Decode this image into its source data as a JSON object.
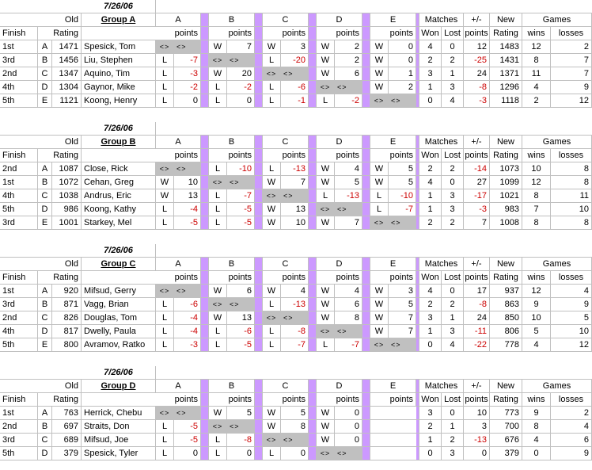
{
  "colors": {
    "diagonal_fill": "#c0c0c0",
    "separator_fill": "#cc99ff",
    "negative_text": "#cc0000",
    "grid_line": "#c0c0c0"
  },
  "headers": {
    "row1": {
      "old": "Old",
      "a": "A",
      "b": "B",
      "c": "C",
      "d": "D",
      "e": "E",
      "matches": "Matches",
      "plusminus": "+/-",
      "new": "New",
      "games": "Games"
    },
    "row2": {
      "finish": "Finish",
      "rating": "Rating",
      "points": "points",
      "won": "Won",
      "lost": "Lost",
      "pm_points": "points",
      "new_rating": "Rating",
      "wins": "wins",
      "losses": "losses"
    }
  },
  "diagonal_marker": "<>",
  "groups": [
    {
      "date": "7/26/06",
      "title": "Group A",
      "players": [
        {
          "finish": "1st",
          "id": "A",
          "old": "1471",
          "name": "Spesick, Tom",
          "res": [
            [
              "<>",
              "<>"
            ],
            [
              "W",
              "7"
            ],
            [
              "W",
              "3"
            ],
            [
              "W",
              "2"
            ],
            [
              "W",
              "0"
            ]
          ],
          "won": "4",
          "lost": "0",
          "pm": "12",
          "new": "1483",
          "wins": "12",
          "losses": "2"
        },
        {
          "finish": "3rd",
          "id": "B",
          "old": "1456",
          "name": "Liu, Stephen",
          "res": [
            [
              "L",
              "-7"
            ],
            [
              "<>",
              "<>"
            ],
            [
              "L",
              "-20"
            ],
            [
              "W",
              "2"
            ],
            [
              "W",
              "0"
            ]
          ],
          "won": "2",
          "lost": "2",
          "pm": "-25",
          "new": "1431",
          "wins": "8",
          "losses": "7"
        },
        {
          "finish": "2nd",
          "id": "C",
          "old": "1347",
          "name": "Aquino, Tim",
          "res": [
            [
              "L",
              "-3"
            ],
            [
              "W",
              "20"
            ],
            [
              "<>",
              "<>"
            ],
            [
              "W",
              "6"
            ],
            [
              "W",
              "1"
            ]
          ],
          "won": "3",
          "lost": "1",
          "pm": "24",
          "new": "1371",
          "wins": "11",
          "losses": "7"
        },
        {
          "finish": "4th",
          "id": "D",
          "old": "1304",
          "name": "Gaynor, Mike",
          "res": [
            [
              "L",
              "-2"
            ],
            [
              "L",
              "-2"
            ],
            [
              "L",
              "-6"
            ],
            [
              "<>",
              "<>"
            ],
            [
              "W",
              "2"
            ]
          ],
          "won": "1",
          "lost": "3",
          "pm": "-8",
          "new": "1296",
          "wins": "4",
          "losses": "9"
        },
        {
          "finish": "5th",
          "id": "E",
          "old": "1121",
          "name": "Koong, Henry",
          "res": [
            [
              "L",
              "0"
            ],
            [
              "L",
              "0"
            ],
            [
              "L",
              "-1"
            ],
            [
              "L",
              "-2"
            ],
            [
              "<>",
              "<>"
            ]
          ],
          "won": "0",
          "lost": "4",
          "pm": "-3",
          "new": "1118",
          "wins": "2",
          "losses": "12"
        }
      ]
    },
    {
      "date": "7/26/06",
      "title": "Group B",
      "players": [
        {
          "finish": "2nd",
          "id": "A",
          "old": "1087",
          "name": "Close, Rick",
          "res": [
            [
              "<>",
              "<>"
            ],
            [
              "L",
              "-10"
            ],
            [
              "L",
              "-13"
            ],
            [
              "W",
              "4"
            ],
            [
              "W",
              "5"
            ]
          ],
          "won": "2",
          "lost": "2",
          "pm": "-14",
          "new": "1073",
          "wins": "10",
          "losses": "8"
        },
        {
          "finish": "1st",
          "id": "B",
          "old": "1072",
          "name": "Cehan, Greg",
          "res": [
            [
              "W",
              "10"
            ],
            [
              "<>",
              "<>"
            ],
            [
              "W",
              "7"
            ],
            [
              "W",
              "5"
            ],
            [
              "W",
              "5"
            ]
          ],
          "won": "4",
          "lost": "0",
          "pm": "27",
          "new": "1099",
          "wins": "12",
          "losses": "8"
        },
        {
          "finish": "4th",
          "id": "C",
          "old": "1038",
          "name": "Andrus, Eric",
          "res": [
            [
              "W",
              "13"
            ],
            [
              "L",
              "-7"
            ],
            [
              "<>",
              "<>"
            ],
            [
              "L",
              "-13"
            ],
            [
              "L",
              "-10"
            ]
          ],
          "won": "1",
          "lost": "3",
          "pm": "-17",
          "new": "1021",
          "wins": "8",
          "losses": "11"
        },
        {
          "finish": "5th",
          "id": "D",
          "old": "986",
          "name": "Koong, Kathy",
          "res": [
            [
              "L",
              "-4"
            ],
            [
              "L",
              "-5"
            ],
            [
              "W",
              "13"
            ],
            [
              "<>",
              "<>"
            ],
            [
              "L",
              "-7"
            ]
          ],
          "won": "1",
          "lost": "3",
          "pm": "-3",
          "new": "983",
          "wins": "7",
          "losses": "10"
        },
        {
          "finish": "3rd",
          "id": "E",
          "old": "1001",
          "name": "Starkey, Mel",
          "res": [
            [
              "L",
              "-5"
            ],
            [
              "L",
              "-5"
            ],
            [
              "W",
              "10"
            ],
            [
              "W",
              "7"
            ],
            [
              "<>",
              "<>"
            ]
          ],
          "won": "2",
          "lost": "2",
          "pm": "7",
          "new": "1008",
          "wins": "8",
          "losses": "8"
        }
      ]
    },
    {
      "date": "7/26/06",
      "title": "Group C",
      "players": [
        {
          "finish": "1st",
          "id": "A",
          "old": "920",
          "name": "Mifsud, Gerry",
          "res": [
            [
              "<>",
              "<>"
            ],
            [
              "W",
              "6"
            ],
            [
              "W",
              "4"
            ],
            [
              "W",
              "4"
            ],
            [
              "W",
              "3"
            ]
          ],
          "won": "4",
          "lost": "0",
          "pm": "17",
          "new": "937",
          "wins": "12",
          "losses": "4"
        },
        {
          "finish": "3rd",
          "id": "B",
          "old": "871",
          "name": "Vagg, Brian",
          "res": [
            [
              "L",
              "-6"
            ],
            [
              "<>",
              "<>"
            ],
            [
              "L",
              "-13"
            ],
            [
              "W",
              "6"
            ],
            [
              "W",
              "5"
            ]
          ],
          "won": "2",
          "lost": "2",
          "pm": "-8",
          "new": "863",
          "wins": "9",
          "losses": "9"
        },
        {
          "finish": "2nd",
          "id": "C",
          "old": "826",
          "name": "Douglas, Tom",
          "res": [
            [
              "L",
              "-4"
            ],
            [
              "W",
              "13"
            ],
            [
              "<>",
              "<>"
            ],
            [
              "W",
              "8"
            ],
            [
              "W",
              "7"
            ]
          ],
          "won": "3",
          "lost": "1",
          "pm": "24",
          "new": "850",
          "wins": "10",
          "losses": "5"
        },
        {
          "finish": "4th",
          "id": "D",
          "old": "817",
          "name": "Dwelly, Paula",
          "res": [
            [
              "L",
              "-4"
            ],
            [
              "L",
              "-6"
            ],
            [
              "L",
              "-8"
            ],
            [
              "<>",
              "<>"
            ],
            [
              "W",
              "7"
            ]
          ],
          "won": "1",
          "lost": "3",
          "pm": "-11",
          "new": "806",
          "wins": "5",
          "losses": "10"
        },
        {
          "finish": "5th",
          "id": "E",
          "old": "800",
          "name": "Avramov, Ratko",
          "res": [
            [
              "L",
              "-3"
            ],
            [
              "L",
              "-5"
            ],
            [
              "L",
              "-7"
            ],
            [
              "L",
              "-7"
            ],
            [
              "<>",
              "<>"
            ]
          ],
          "won": "0",
          "lost": "4",
          "pm": "-22",
          "new": "778",
          "wins": "4",
          "losses": "12"
        }
      ]
    },
    {
      "date": "7/26/06",
      "title": "Group D",
      "players": [
        {
          "finish": "1st",
          "id": "A",
          "old": "763",
          "name": "Herrick, Chebu",
          "res": [
            [
              "<>",
              "<>"
            ],
            [
              "W",
              "5"
            ],
            [
              "W",
              "5"
            ],
            [
              "W",
              "0"
            ]
          ],
          "won": "3",
          "lost": "0",
          "pm": "10",
          "new": "773",
          "wins": "9",
          "losses": "2"
        },
        {
          "finish": "2nd",
          "id": "B",
          "old": "697",
          "name": "Straits, Don",
          "res": [
            [
              "L",
              "-5"
            ],
            [
              "<>",
              "<>"
            ],
            [
              "W",
              "8"
            ],
            [
              "W",
              "0"
            ]
          ],
          "won": "2",
          "lost": "1",
          "pm": "3",
          "new": "700",
          "wins": "8",
          "losses": "4"
        },
        {
          "finish": "3rd",
          "id": "C",
          "old": "689",
          "name": "Mifsud, Joe",
          "res": [
            [
              "L",
              "-5"
            ],
            [
              "L",
              "-8"
            ],
            [
              "<>",
              "<>"
            ],
            [
              "W",
              "0"
            ]
          ],
          "won": "1",
          "lost": "2",
          "pm": "-13",
          "new": "676",
          "wins": "4",
          "losses": "6"
        },
        {
          "finish": "5th",
          "id": "D",
          "old": "379",
          "name": "Spesick, Tyler",
          "res": [
            [
              "L",
              "0"
            ],
            [
              "L",
              "0"
            ],
            [
              "L",
              "0"
            ],
            [
              "<>",
              "<>"
            ]
          ],
          "won": "0",
          "lost": "3",
          "pm": "0",
          "new": "379",
          "wins": "0",
          "losses": "9"
        }
      ]
    }
  ]
}
